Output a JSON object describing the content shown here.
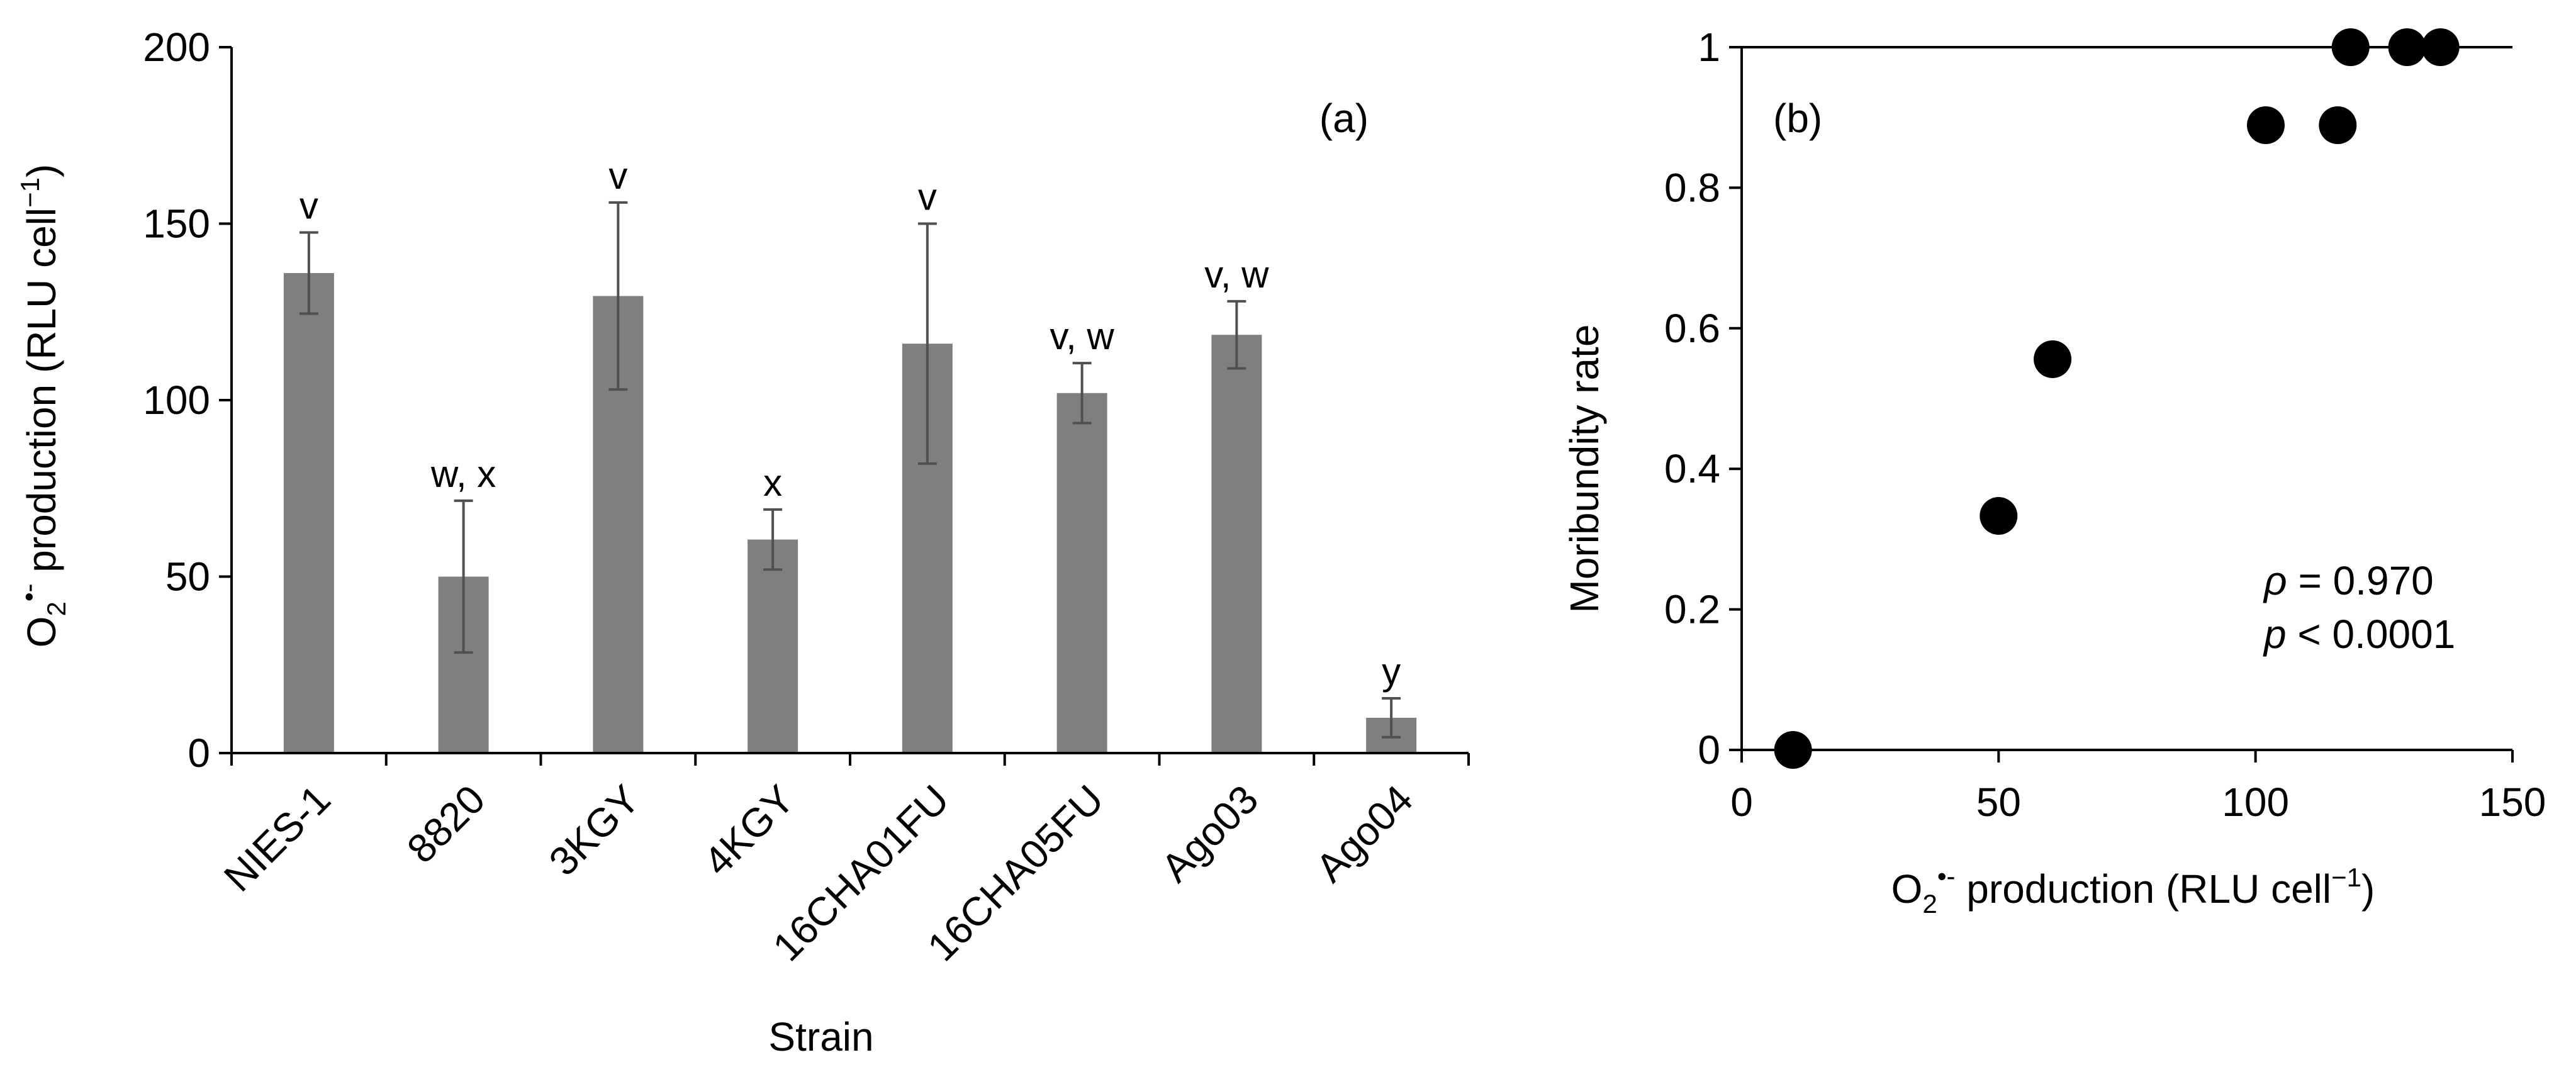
{
  "chart_data": [
    {
      "panel": "(a)",
      "type": "bar",
      "xlabel": "Strain",
      "ylabel": {
        "pre": "O",
        "sub": "2",
        "sup": "•-",
        "post": " production (RLU cell",
        "unit_sup": "−1",
        "close": ")"
      },
      "ylim": [
        0,
        200
      ],
      "yticks": [
        0,
        50,
        100,
        150,
        200
      ],
      "categories": [
        "NIES-1",
        "8820",
        "3KGY",
        "4KGY",
        "16CHA01FU",
        "16CHA05FU",
        "Ago03",
        "Ago04"
      ],
      "values": [
        136,
        50,
        129.5,
        60.5,
        116,
        102,
        118.5,
        10
      ],
      "error": [
        11.5,
        21.5,
        26.5,
        8.5,
        34,
        8.5,
        9.5,
        5.5
      ],
      "significance_labels": [
        "v",
        "w, x",
        "v",
        "x",
        "v",
        "v, w",
        "v, w",
        "y"
      ],
      "bar_color": "#7f7f7f"
    },
    {
      "panel": "(b)",
      "type": "scatter",
      "xlabel": {
        "pre": "O",
        "sub": "2",
        "sup": "•-",
        "post": " production (RLU cell",
        "unit_sup": "−1",
        "close": ")"
      },
      "ylabel": "Moribundity rate",
      "xlim": [
        0,
        150
      ],
      "ylim": [
        0,
        1
      ],
      "xticks": [
        0,
        50,
        100,
        150
      ],
      "yticks": [
        0,
        0.2,
        0.4,
        0.6,
        0.8,
        1
      ],
      "points": [
        {
          "x": 10,
          "y": 0
        },
        {
          "x": 50,
          "y": 0.333
        },
        {
          "x": 60.5,
          "y": 0.556
        },
        {
          "x": 102,
          "y": 0.889
        },
        {
          "x": 116,
          "y": 0.889
        },
        {
          "x": 118.5,
          "y": 1
        },
        {
          "x": 129.5,
          "y": 1
        },
        {
          "x": 136,
          "y": 1
        }
      ],
      "annotation": {
        "rho_symbol": "ρ",
        "rho_text": " = 0.970",
        "p_symbol": "p",
        "p_text": " < 0.0001"
      },
      "marker_color": "#000000"
    }
  ]
}
